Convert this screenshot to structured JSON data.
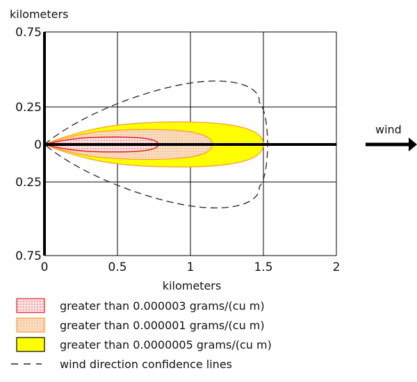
{
  "chart_data": {
    "type": "area",
    "title": "",
    "ylabel": "kilometers",
    "xlabel": "kilometers",
    "xlim": [
      0,
      2
    ],
    "ylim": [
      -0.75,
      0.75
    ],
    "x_ticks": [
      0,
      0.5,
      1,
      1.5,
      2
    ],
    "x_tick_labels": [
      "0",
      "0.5",
      "1",
      "1.5",
      "2"
    ],
    "y_ticks": [
      0.75,
      0.25,
      0,
      -0.25,
      -0.75
    ],
    "y_tick_labels": [
      "0.75",
      "0.25",
      "0",
      "0.25",
      "0.75"
    ],
    "grid": true,
    "wind_label": "wind",
    "series": [
      {
        "name": "greater than 0.0000005 grams/(cu m)",
        "color": "#ffff00",
        "fill": "solid",
        "outline": "#ff9933",
        "shape": "threat-zone",
        "downwind_extent_km": 1.5,
        "max_half_width_km": 0.15
      },
      {
        "name": "greater than 0.000001 grams/(cu m)",
        "color": "#f9dcc0",
        "fill": "dotted",
        "outline": "#ff9933",
        "shape": "threat-zone",
        "downwind_extent_km": 1.15,
        "max_half_width_km": 0.1
      },
      {
        "name": "greater than 0.000003 grams/(cu m)",
        "color": "#fce4e4",
        "fill": "dotted",
        "outline": "#dd2222",
        "shape": "threat-zone",
        "downwind_extent_km": 0.78,
        "max_half_width_km": 0.05
      },
      {
        "name": "wind direction confidence lines",
        "color": "#222222",
        "fill": "none",
        "style": "dashed",
        "shape": "confidence-lines",
        "downwind_extent_km": 1.5,
        "max_half_width_km": 0.42
      }
    ],
    "legend": {
      "position": "bottom",
      "items": [
        {
          "label": "greater than 0.000003 grams/(cu m)",
          "swatch": "red-dotted"
        },
        {
          "label": "greater than 0.000001 grams/(cu m)",
          "swatch": "orange-dotted"
        },
        {
          "label": "greater than 0.0000005 grams/(cu m)",
          "swatch": "yellow-solid"
        },
        {
          "label": "wind direction confidence lines",
          "swatch": "dashed-line"
        }
      ]
    }
  }
}
